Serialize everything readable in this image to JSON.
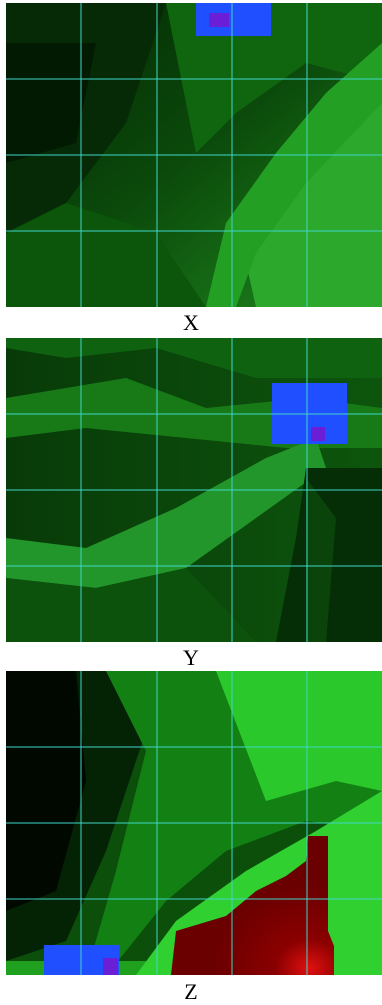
{
  "panels": [
    {
      "id": "x",
      "caption": "X"
    },
    {
      "id": "y",
      "caption": "Y"
    },
    {
      "id": "z",
      "caption": "Z"
    }
  ],
  "colors": {
    "grid": "#3fd6c8",
    "marker_box": "#1f4fff",
    "marker_core": "#6a1fd6",
    "hot_region": "#8a0000"
  }
}
